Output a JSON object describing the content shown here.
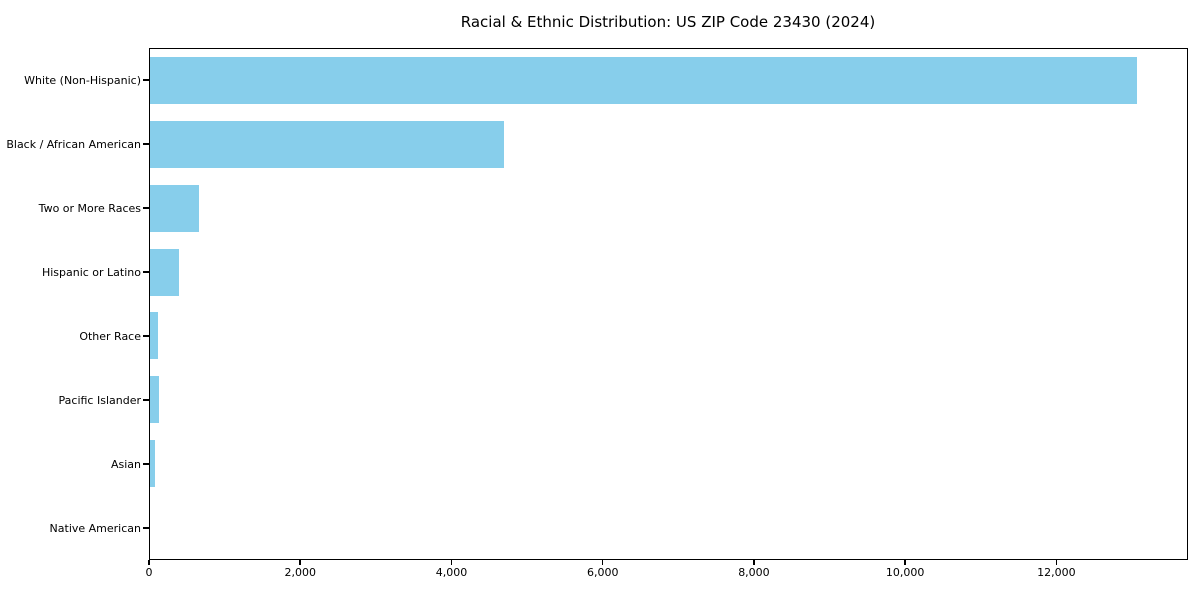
{
  "title": "Racial & Ethnic Distribution: US ZIP Code 23430 (2024)",
  "colors": {
    "bar": "#87CEEB",
    "spine": "#000000",
    "text": "#000000",
    "background": "#FFFFFF"
  },
  "chart_data": {
    "type": "bar",
    "orientation": "horizontal",
    "title": "Racial & Ethnic Distribution: US ZIP Code 23430 (2024)",
    "xlabel": "",
    "ylabel": "",
    "categories": [
      "White (Non-Hispanic)",
      "Black / African American",
      "Two or More Races",
      "Hispanic or Latino",
      "Other Race",
      "Pacific Islander",
      "Asian",
      "Native American"
    ],
    "values": [
      13080,
      4690,
      650,
      390,
      105,
      115,
      70,
      0
    ],
    "xlim": [
      0,
      13740
    ],
    "xticks": [
      0,
      2000,
      4000,
      6000,
      8000,
      10000,
      12000
    ],
    "xtick_labels": [
      "0",
      "2,000",
      "4,000",
      "6,000",
      "8,000",
      "10,000",
      "12,000"
    ],
    "grid": false,
    "legend": null,
    "bar_color": "#87CEEB"
  }
}
